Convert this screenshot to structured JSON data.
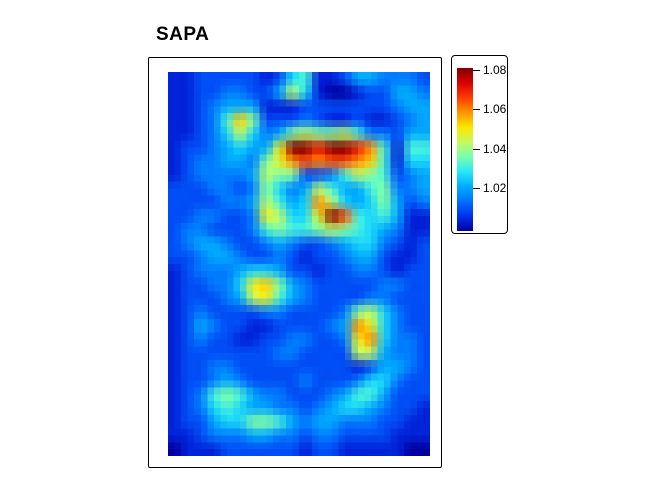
{
  "chart_data": {
    "type": "heatmap",
    "title": "SAPA",
    "colormap": "jet",
    "palette": [
      "#0000A0",
      "#0030EC",
      "#0070FF",
      "#00ACFF",
      "#28E8F8",
      "#78FFB0",
      "#C4F860",
      "#FFE600",
      "#FF9400",
      "#FF3C00",
      "#D80000",
      "#800000"
    ],
    "value_min": 0.998,
    "value_max": 1.081,
    "legend": {
      "ticks": [
        1.02,
        1.04,
        1.06,
        1.08
      ],
      "labels": [
        "1.02",
        "1.04",
        "1.06",
        "1.08"
      ]
    },
    "grid": {
      "cols": 20,
      "rows": 28,
      "encoding": "each char is hex digit d (0-15); cell value = value_min + d/15 * (value_max - value_min)",
      "cells": [
        "11222221256112443332",
        "11223322485100122443",
        "11234441112222222344",
        "11236a72223211211234",
        "11235853478778633244",
        "122345449ffdffdb6166",
        "123344379bcbccba6155",
        "12333348772236876234",
        "22233237534864467334",
        "22223348645b85457423",
        "223322398559fc656411",
        "23322236766787654311",
        "23443223432234553212",
        "22344322321223442112",
        "12333455422122332122",
        "1223359a743222223322",
        "12223489643222233222",
        "12322223322223785322",
        "12432211222234b95322",
        "123221122332239b5332",
        "12222222332222884332",
        "12233222222222124432",
        "12234322223222355322",
        "12367643322234664222",
        "12356544332345543221",
        "12245577643443332211",
        "11233344332332222111",
        "01112222221221111100"
      ]
    }
  }
}
